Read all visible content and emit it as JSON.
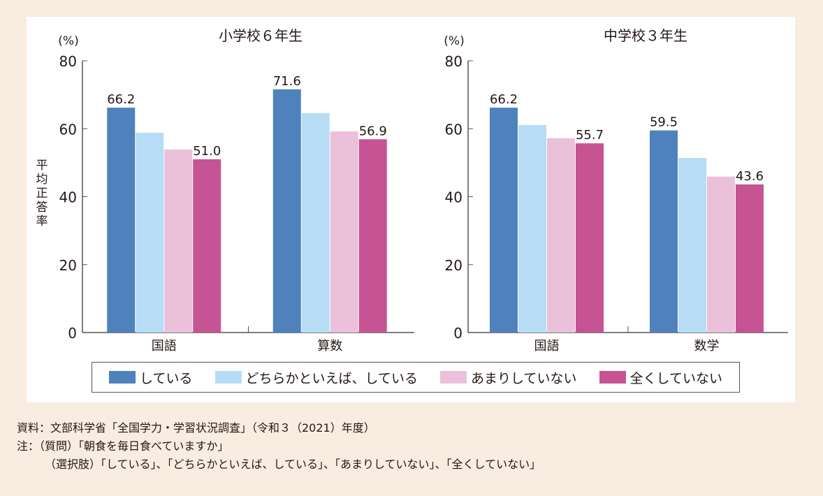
{
  "chart_data": [
    {
      "type": "bar",
      "title": "小学校６年生",
      "unit_label": "(%)",
      "ylabel": "平均正答率",
      "xlabel": "",
      "ylim": [
        0,
        80
      ],
      "yticks": [
        0,
        20,
        40,
        60,
        80
      ],
      "categories": [
        "国語",
        "算数"
      ],
      "series": [
        {
          "name": "している",
          "values": [
            66.2,
            71.6
          ],
          "labels": [
            "66.2",
            "71.6"
          ]
        },
        {
          "name": "どちらかといえば、している",
          "values": [
            58.8,
            64.6
          ],
          "labels": [
            "",
            ""
          ]
        },
        {
          "name": "あまりしていない",
          "values": [
            53.9,
            59.2
          ],
          "labels": [
            "",
            ""
          ]
        },
        {
          "name": "全くしていない",
          "values": [
            51.0,
            56.9
          ],
          "labels": [
            "51.0",
            "56.9"
          ]
        }
      ],
      "grid": false
    },
    {
      "type": "bar",
      "title": "中学校３年生",
      "unit_label": "(%)",
      "ylabel": "",
      "xlabel": "",
      "ylim": [
        0,
        80
      ],
      "yticks": [
        0,
        20,
        40,
        60,
        80
      ],
      "categories": [
        "国語",
        "数学"
      ],
      "series": [
        {
          "name": "している",
          "values": [
            66.2,
            59.5
          ],
          "labels": [
            "66.2",
            "59.5"
          ]
        },
        {
          "name": "どちらかといえば、している",
          "values": [
            61.1,
            51.4
          ],
          "labels": [
            "",
            ""
          ]
        },
        {
          "name": "あまりしていない",
          "values": [
            57.2,
            45.9
          ],
          "labels": [
            "",
            ""
          ]
        },
        {
          "name": "全くしていない",
          "values": [
            55.7,
            43.6
          ],
          "labels": [
            "55.7",
            "43.6"
          ]
        }
      ],
      "grid": false
    }
  ],
  "legend": {
    "placement": "bottom",
    "items": [
      {
        "label": "している",
        "color": "#4f81bd"
      },
      {
        "label": "どちらかといえば、している",
        "color": "#b6ddf5"
      },
      {
        "label": "あまりしていない",
        "color": "#ebc0da"
      },
      {
        "label": "全くしていない",
        "color": "#c65394"
      }
    ]
  },
  "notes": {
    "source": "資料：文部科学省「全国学力・学習状況調査」（令和３（2021）年度）",
    "note1": "注：（質問）「朝食を毎日食べていますか」",
    "note2": "（選択肢）「している」、「どちらかといえば、している」、「あまりしていない」、「全くしていない」"
  }
}
